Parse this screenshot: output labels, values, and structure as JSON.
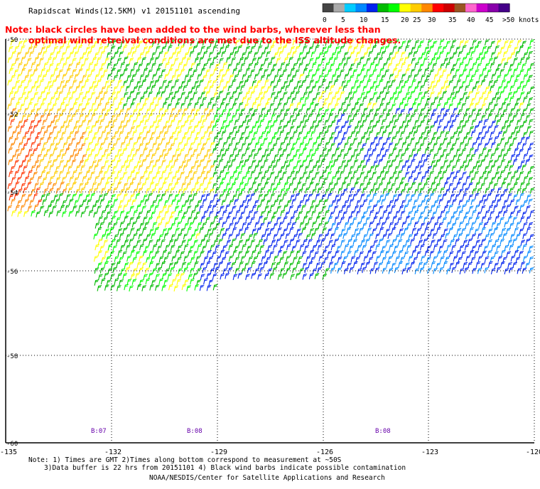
{
  "header": {
    "title": "Rapidscat Winds(12.5KM) v1 20151101 ascending",
    "note_line1": "Note: black circles have been added to the wind barbs, wherever less than",
    "note_line2": "optimal wind retreival conditions are met due to the ISS altitude changes."
  },
  "legend": {
    "labels": [
      "0",
      "5",
      "10",
      "15",
      "20",
      "25",
      "30",
      "35",
      "40",
      "45",
      ">50 knots"
    ],
    "colors": [
      "#444444",
      "#aaaaaa",
      "#00ccff",
      "#0088ff",
      "#0022ee",
      "#00bb00",
      "#00ff00",
      "#ffff00",
      "#ffcc00",
      "#ff8800",
      "#ff0000",
      "#cc0000",
      "#995522",
      "#ff66cc",
      "#cc00cc",
      "#8800aa",
      "#440088"
    ]
  },
  "map": {
    "lat_labels": [
      "-50",
      "-52",
      "-54",
      "-56",
      "-58",
      "-60"
    ],
    "lon_labels": [
      "-135",
      "-132",
      "-129",
      "-126",
      "-123",
      "-120"
    ],
    "time_labels": [
      "B:07",
      "B:08",
      "B:08"
    ],
    "colors": {
      "yellow": "#ffff00",
      "orange": "#ffcc00",
      "dark_orange": "#ff8800",
      "red": "#ff3300",
      "dark_green": "#00bb00",
      "green": "#00ff00",
      "blue": "#0022ee",
      "mid_blue": "#0088ff",
      "grid": "#000000",
      "time_label": "#6600aa"
    }
  },
  "footer": {
    "line1": "Note: 1) Times are GMT 2)Times along bottom correspond to measurement at ~50S",
    "line2": "3)Data buffer is 22 hrs from 20151101 4) Black wind barbs indicate possible contamination",
    "line3": "NOAA/NESDIS/Center for Satellite Applications and Research"
  }
}
